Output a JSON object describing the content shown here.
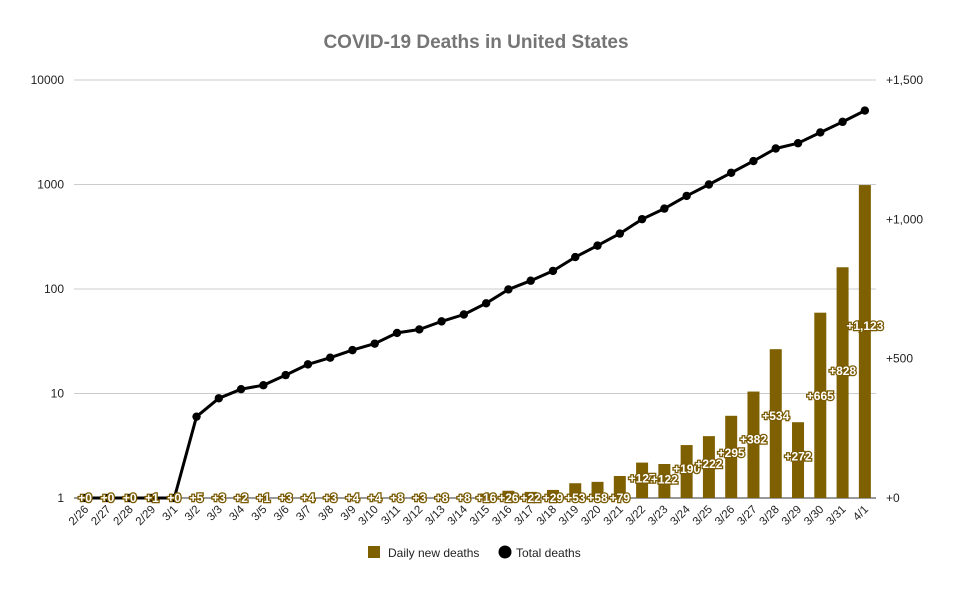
{
  "chart_data": {
    "type": "bar",
    "title": "COVID-19 Deaths in United States",
    "categories": [
      "2/26",
      "2/27",
      "2/28",
      "2/29",
      "3/1",
      "3/2",
      "3/3",
      "3/4",
      "3/5",
      "3/6",
      "3/7",
      "3/8",
      "3/9",
      "3/10",
      "3/11",
      "3/12",
      "3/13",
      "3/14",
      "3/15",
      "3/16",
      "3/17",
      "3/18",
      "3/19",
      "3/20",
      "3/21",
      "3/22",
      "3/23",
      "3/24",
      "3/25",
      "3/26",
      "3/27",
      "3/28",
      "3/29",
      "3/30",
      "3/31",
      "4/1"
    ],
    "y_left": {
      "scale": "log",
      "ticks": [
        "1",
        "10",
        "100",
        "1000",
        "10000"
      ],
      "range": [
        1,
        10000
      ]
    },
    "y_right": {
      "scale": "linear",
      "ticks": [
        "+0",
        "+500",
        "+1,000",
        "+1,500"
      ],
      "range": [
        0,
        1500
      ]
    },
    "series": [
      {
        "name": "Daily new deaths",
        "type": "bar",
        "axis": "right",
        "color": "#7f6000",
        "values": [
          0,
          0,
          0,
          1,
          0,
          5,
          3,
          2,
          1,
          3,
          4,
          3,
          4,
          4,
          8,
          3,
          8,
          8,
          16,
          26,
          22,
          29,
          53,
          58,
          79,
          127,
          122,
          190,
          222,
          295,
          382,
          534,
          272,
          665,
          828,
          1123
        ],
        "data_labels": [
          "+0",
          "+0",
          "+0",
          "+1",
          "+0",
          "+5",
          "+3",
          "+2",
          "+1",
          "+3",
          "+4",
          "+3",
          "+4",
          "+4",
          "+8",
          "+3",
          "+8",
          "+8",
          "+16",
          "+26",
          "+22",
          "+29",
          "+53",
          "+58",
          "+79",
          "+127",
          "+122",
          "+190",
          "+222",
          "+295",
          "+382",
          "+534",
          "+272",
          "+665",
          "+828",
          "+1,123"
        ]
      },
      {
        "name": "Total deaths",
        "type": "line",
        "axis": "left",
        "color": "#000000",
        "values": [
          1,
          1,
          1,
          1,
          1,
          6,
          9,
          11,
          12,
          15,
          19,
          22,
          26,
          30,
          38,
          41,
          49,
          57,
          73,
          99,
          120,
          149,
          202,
          260,
          339,
          466,
          588,
          778,
          1000,
          1295,
          1677,
          2211,
          2483,
          3148,
          3976,
          5099
        ]
      }
    ],
    "legend_position": "bottom",
    "grid": true
  }
}
